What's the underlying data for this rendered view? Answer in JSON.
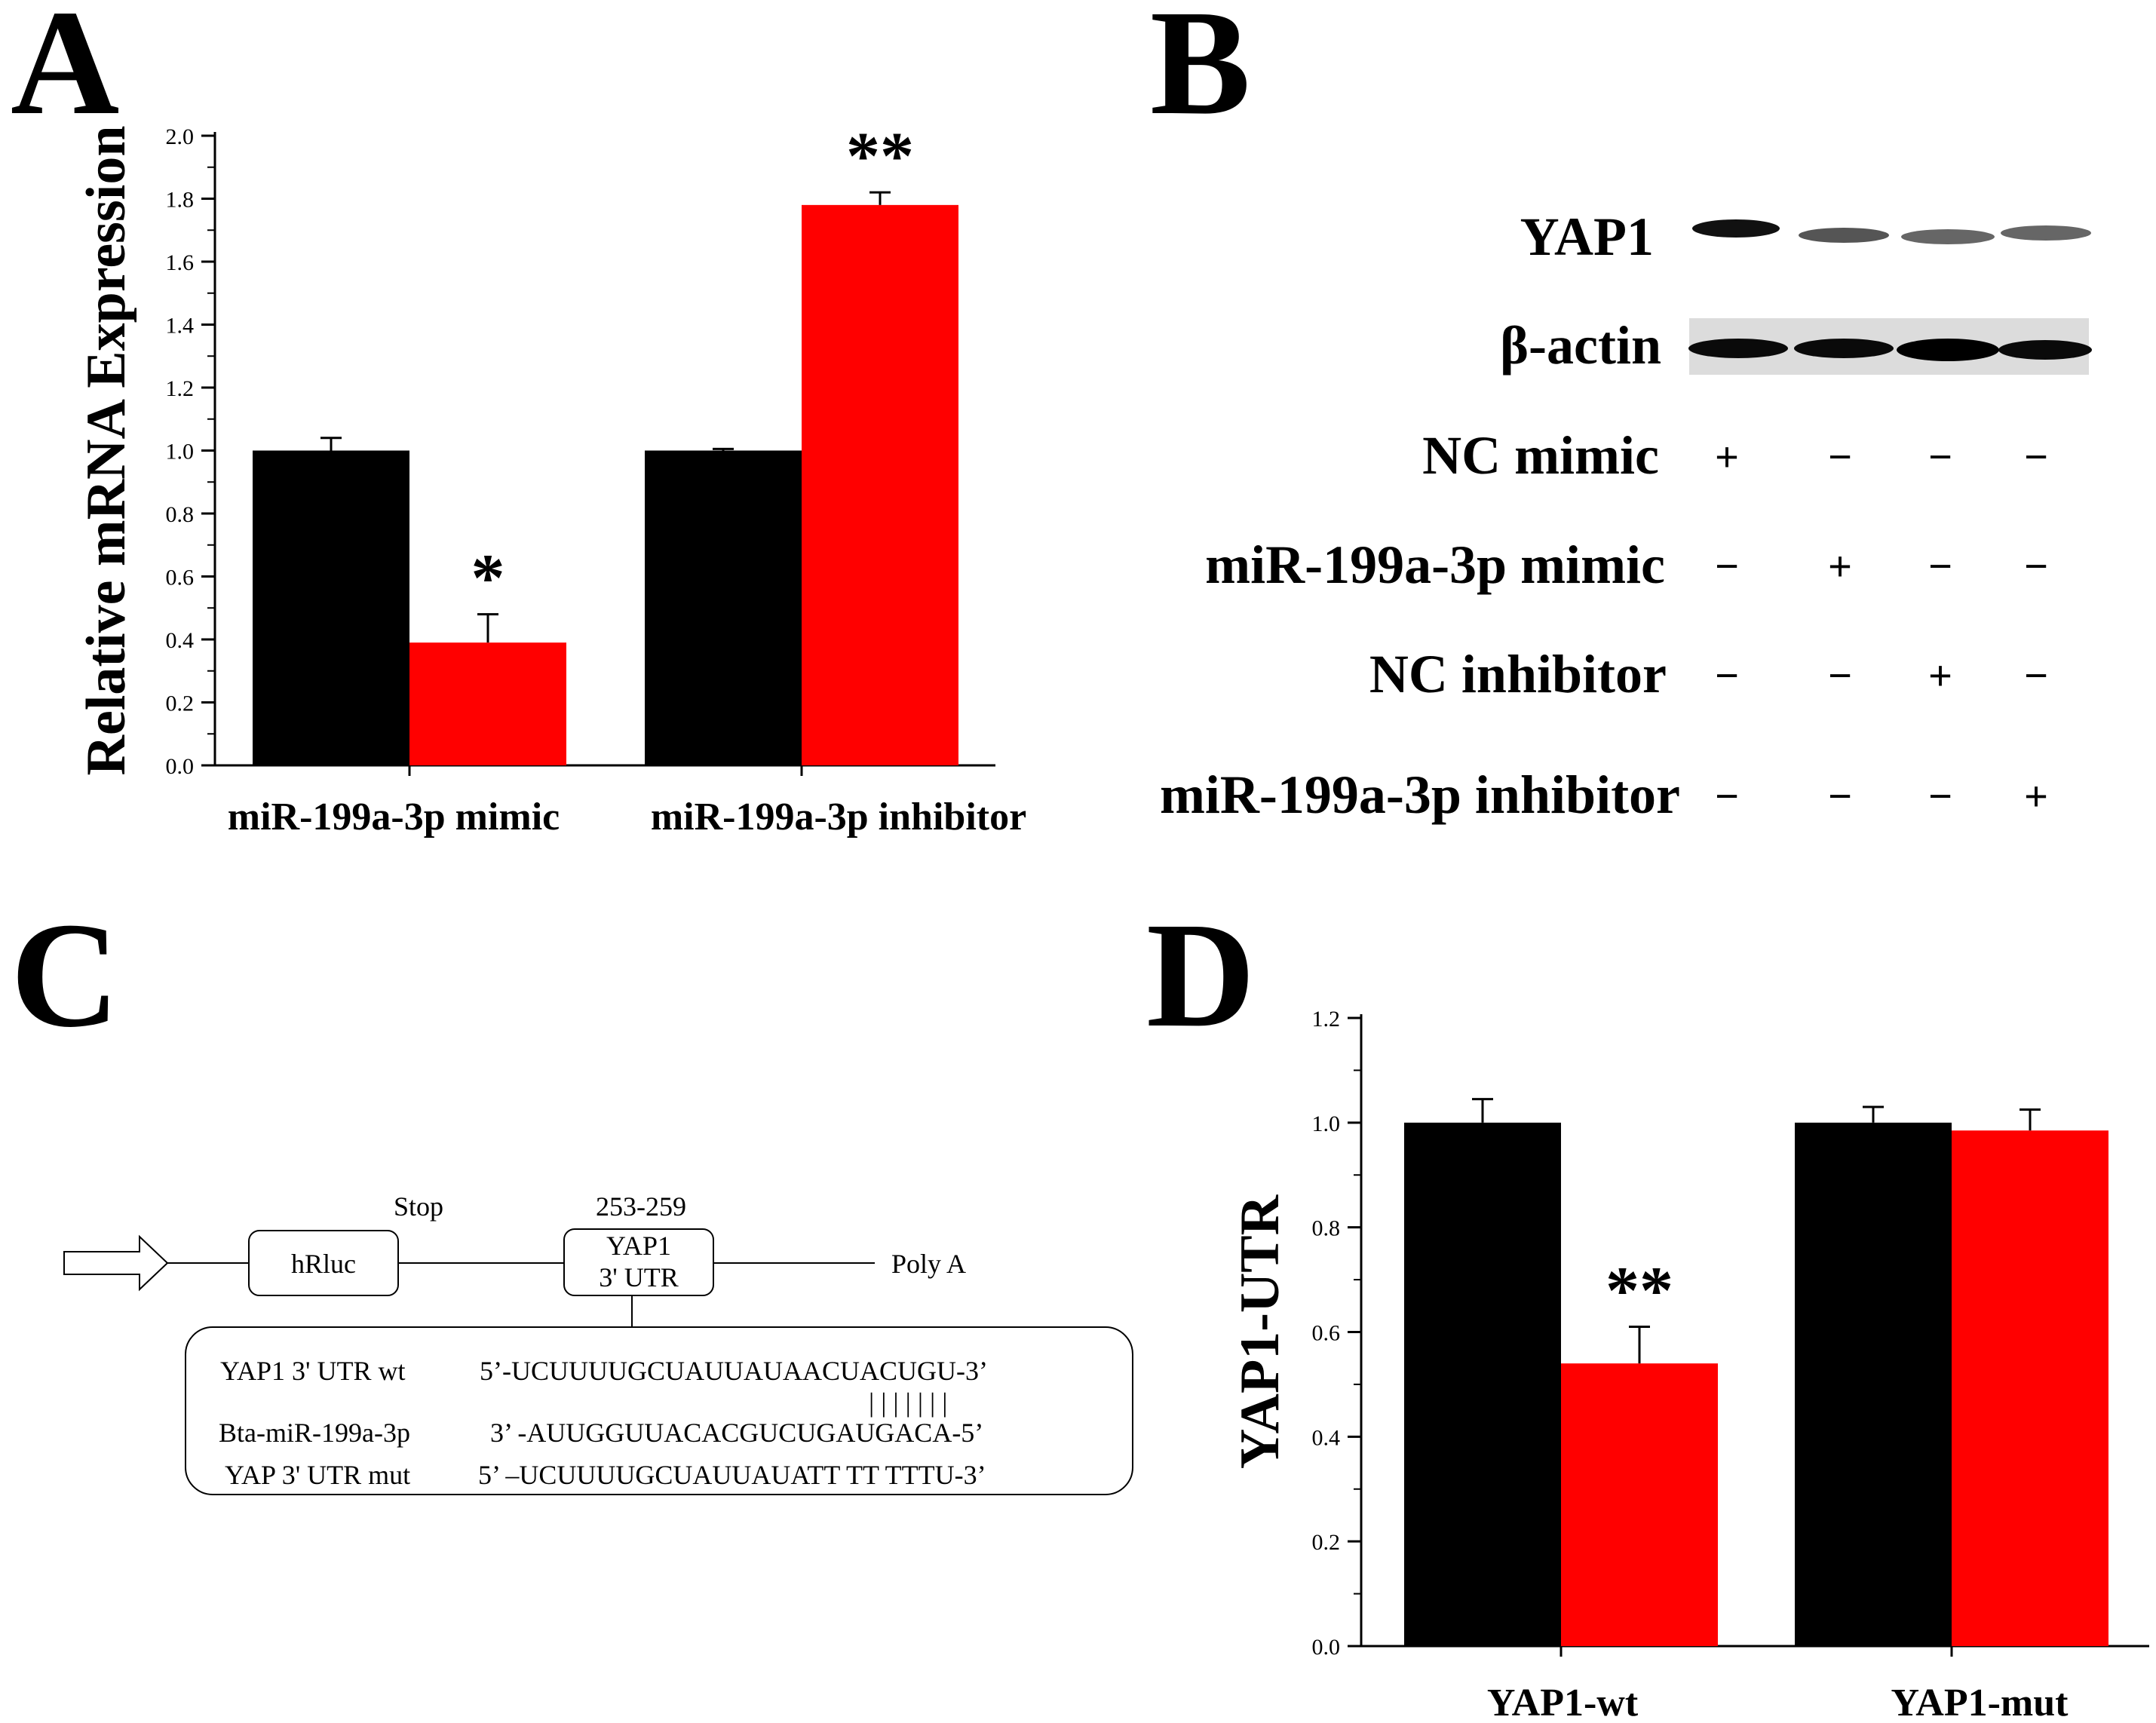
{
  "panels": {
    "a": "A",
    "b": "B",
    "c": "C",
    "d": "D"
  },
  "colors": {
    "control": "#000000",
    "treatment": "#ff0000"
  },
  "chart_data": [
    {
      "id": "A",
      "type": "bar",
      "ylabel": "Relative mRNA Expression",
      "ylim": [
        0,
        2.0
      ],
      "yticks": [
        "0.0",
        "0.2",
        "0.4",
        "0.6",
        "0.8",
        "1.0",
        "1.2",
        "1.4",
        "1.6",
        "1.8",
        "2.0"
      ],
      "categories": [
        "miR-199a-3p mimic",
        "miR-199a-3p inhibitor"
      ],
      "series": [
        {
          "name": "control",
          "values": [
            1.0,
            1.0
          ],
          "errors": [
            0.04,
            0.005
          ]
        },
        {
          "name": "treatment",
          "values": [
            0.39,
            1.78
          ],
          "errors": [
            0.09,
            0.04
          ]
        }
      ],
      "significance": [
        "*",
        "**"
      ]
    },
    {
      "id": "D",
      "type": "bar",
      "ylabel": "YAP1-UTR",
      "ylim": [
        0,
        1.2
      ],
      "yticks": [
        "0.0",
        "0.2",
        "0.4",
        "0.6",
        "0.8",
        "1.0",
        "1.2"
      ],
      "categories": [
        "YAP1-wt",
        "YAP1-mut"
      ],
      "series": [
        {
          "name": "control",
          "values": [
            1.0,
            1.0
          ],
          "errors": [
            0.045,
            0.03
          ]
        },
        {
          "name": "treatment",
          "values": [
            0.54,
            0.985
          ],
          "errors": [
            0.07,
            0.04
          ]
        }
      ],
      "significance": [
        "**",
        ""
      ]
    }
  ],
  "blot": {
    "bands": [
      "YAP1",
      "β-actin"
    ],
    "conditions": [
      {
        "label": "NC mimic",
        "signs": [
          "+",
          "−",
          "−",
          "−"
        ]
      },
      {
        "label": "miR-199a-3p mimic",
        "signs": [
          "−",
          "+",
          "−",
          "−"
        ]
      },
      {
        "label": "NC inhibitor",
        "signs": [
          "−",
          "−",
          "+",
          "−"
        ]
      },
      {
        "label": "miR-199a-3p inhibitor",
        "signs": [
          "−",
          "−",
          "−",
          "+"
        ]
      }
    ]
  },
  "diagram": {
    "stop": "Stop",
    "site": "253-259",
    "hrluc": "hRluc",
    "utr_line1": "YAP1",
    "utr_line2": "3' UTR",
    "polya": "Poly A",
    "rows": [
      {
        "name": "YAP1 3' UTR wt",
        "seq": "5’-UCUUUUGCUAUUAUAACUACUGU-3’"
      },
      {
        "name": "Bta-miR-199a-3p",
        "seq": "3’ -AUUGGUUACACGUCUGAUGACA-5’"
      },
      {
        "name": "YAP 3' UTR mut",
        "seq": "5’ –UCUUUUGCUAUUAUATT TT TTTU-3’"
      }
    ],
    "pairing": "| | | | | | |"
  }
}
